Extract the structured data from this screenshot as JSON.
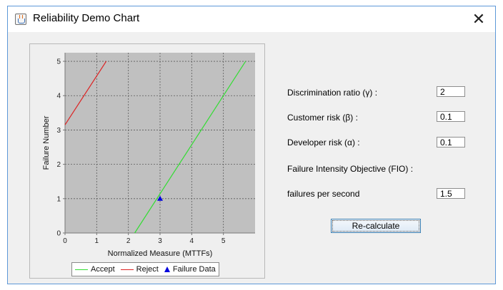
{
  "window": {
    "title": "Reliability Demo Chart",
    "close_glyph": "✕",
    "icon": "java-cup-icon"
  },
  "form": {
    "discrimination_label": "Discrimination ratio (γ) :",
    "discrimination_value": "2",
    "customer_risk_label": "Customer risk (β) :",
    "customer_risk_value": "0.1",
    "developer_risk_label": "Developer risk (α) :",
    "developer_risk_value": "0.1",
    "fio_label": "Failure Intensity Objective (FIO) :",
    "fps_label": "failures per second",
    "fps_value": "1.5",
    "recalc_label": "Re-calculate"
  },
  "chart_data": {
    "type": "line",
    "xlabel": "Normalized Measure (MTTFs)",
    "ylabel": "Failure Number",
    "xlim": [
      0,
      6
    ],
    "ylim": [
      0,
      5.25
    ],
    "xticks": [
      0,
      1,
      2,
      3,
      4,
      5
    ],
    "yticks": [
      0,
      1,
      2,
      3,
      4,
      5
    ],
    "grid": true,
    "legend_position": "bottom",
    "series": [
      {
        "name": "Accept",
        "kind": "line",
        "color": "#33dd33",
        "points": [
          [
            2.2,
            0
          ],
          [
            5.7,
            5
          ]
        ]
      },
      {
        "name": "Reject",
        "kind": "line",
        "color": "#dd2222",
        "points": [
          [
            0,
            3.15
          ],
          [
            1.3,
            5
          ]
        ]
      },
      {
        "name": "Failure Data",
        "kind": "marker",
        "marker": "triangle",
        "color": "#0000dd",
        "points": [
          [
            3.0,
            1
          ]
        ]
      }
    ],
    "plot_background": "#c0c0c0"
  }
}
